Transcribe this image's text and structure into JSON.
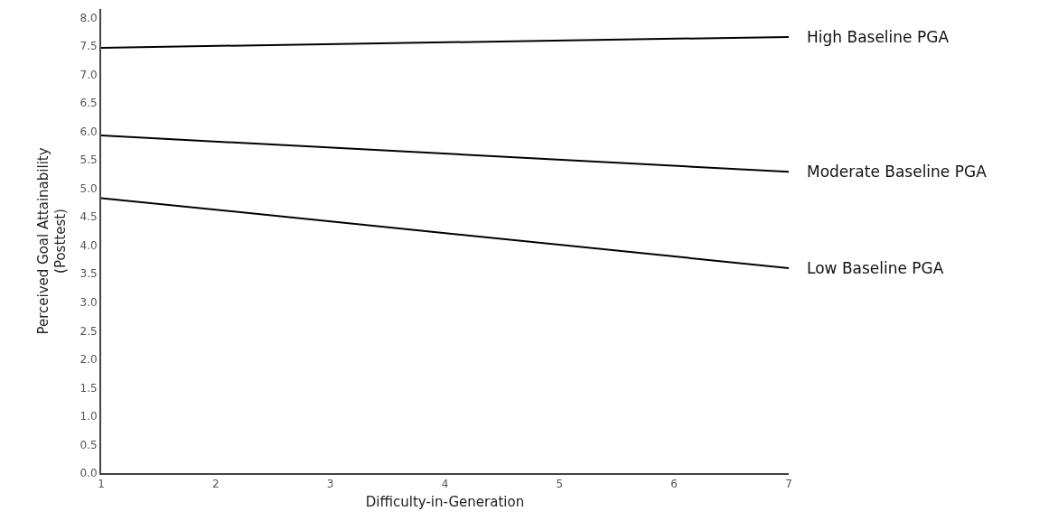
{
  "chart_data": {
    "type": "line",
    "xlabel": "Difficulty-in-Generation",
    "ylabel": "Perceived Goal Attainability\n(Posttest)",
    "x": [
      1,
      7
    ],
    "xlim": [
      1,
      7
    ],
    "xticks": [
      1,
      2,
      3,
      4,
      5,
      6,
      7
    ],
    "ylim": [
      0,
      8.15
    ],
    "yticks": [
      {
        "value": 0,
        "label": "0.0"
      },
      {
        "value": 0.5,
        "label": "0.5"
      },
      {
        "value": 1,
        "label": "1.0"
      },
      {
        "value": 1.5,
        "label": "1.5"
      },
      {
        "value": 2,
        "label": "2.0"
      },
      {
        "value": 2.5,
        "label": "2.5"
      },
      {
        "value": 3,
        "label": "3.0"
      },
      {
        "value": 3.5,
        "label": "3.5"
      },
      {
        "value": 4,
        "label": "4.0"
      },
      {
        "value": 4.5,
        "label": "4.5"
      },
      {
        "value": 5,
        "label": "5.0"
      },
      {
        "value": 5.5,
        "label": "5.5"
      },
      {
        "value": 6,
        "label": "6.0"
      },
      {
        "value": 6.5,
        "label": "6.5"
      },
      {
        "value": 7,
        "label": "7.0"
      },
      {
        "value": 7.5,
        "label": "7.5"
      },
      {
        "value": 8,
        "label": "8.0"
      }
    ],
    "series": [
      {
        "name": "High Baseline PGA",
        "color": "#000000",
        "values": [
          7.47,
          7.66
        ]
      },
      {
        "name": "Moderate Baseline PGA",
        "color": "#000000",
        "values": [
          5.93,
          5.29
        ]
      },
      {
        "name": "Low Baseline PGA",
        "color": "#000000",
        "values": [
          4.83,
          3.6
        ]
      }
    ],
    "legend": false,
    "marker": "none",
    "line_style": "solid"
  }
}
